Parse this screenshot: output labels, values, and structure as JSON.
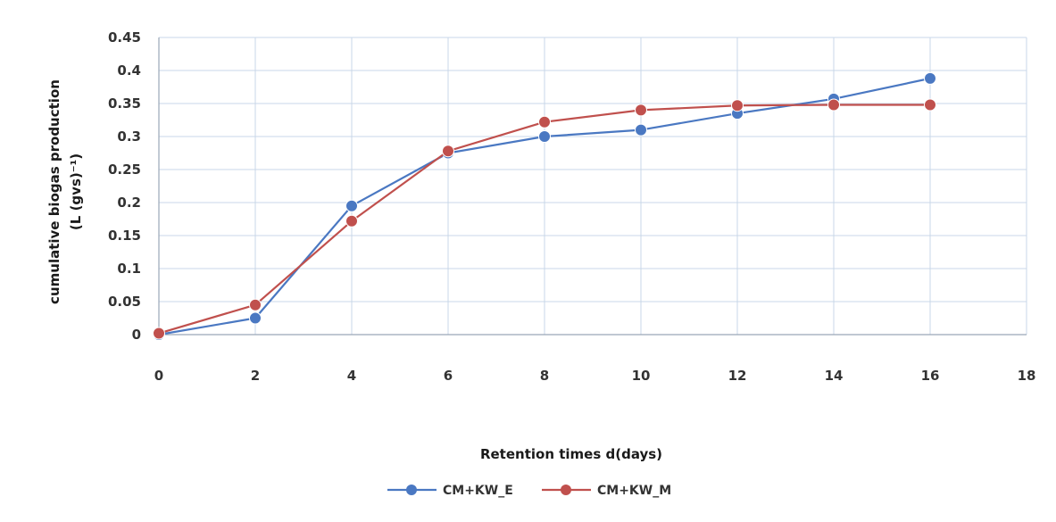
{
  "chart_data": {
    "type": "line",
    "title": "",
    "xlabel": "Retention times d(days)",
    "ylabel_line1": "cumulative biogas production",
    "ylabel_line2": "(L (gvs)⁻¹)",
    "xlim": [
      0,
      18
    ],
    "ylim": [
      0,
      0.45
    ],
    "x_ticks": [
      0,
      2,
      4,
      6,
      8,
      10,
      12,
      14,
      16,
      18
    ],
    "y_ticks": [
      0,
      0.05,
      0.1,
      0.15,
      0.2,
      0.25,
      0.3,
      0.35,
      0.4,
      0.45
    ],
    "grid": true,
    "legend_position": "bottom",
    "series": [
      {
        "name": "CM+KW_E",
        "color": "#4a78c2",
        "x": [
          0,
          2,
          4,
          6,
          8,
          10,
          12,
          14,
          16
        ],
        "y": [
          0,
          0.025,
          0.195,
          0.275,
          0.3,
          0.31,
          0.335,
          0.357,
          0.388
        ]
      },
      {
        "name": "CM+KW_M",
        "color": "#c0504d",
        "x": [
          0,
          2,
          4,
          6,
          8,
          10,
          12,
          14,
          16
        ],
        "y": [
          0.002,
          0.045,
          0.172,
          0.278,
          0.322,
          0.34,
          0.347,
          0.348,
          0.348
        ]
      }
    ]
  }
}
